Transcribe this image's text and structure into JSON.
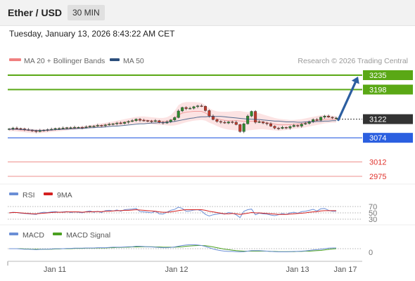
{
  "header": {
    "title": "Ether / USD",
    "timeframe": "30 MIN",
    "timestamp": "Tuesday, January 13, 2026 8:43:22 AM CET"
  },
  "legend": {
    "bollinger": "MA 20 + Bollinger Bands",
    "ma50": "MA 50",
    "credit": "Research © 2026 Trading Central"
  },
  "colors": {
    "resistance": "#5aa815",
    "support": "#2b5fe0",
    "pivot": "#333333",
    "minor": "#e0332d",
    "arrow": "#2c5ea0",
    "bollinger": "#f08080",
    "ma50": "#2c4f7c",
    "rsi": "#6b8fd6",
    "rsi_ma": "#d42020",
    "macd": "#6b8fd6",
    "macd_signal": "#4aa020"
  },
  "chart_data": [
    {
      "type": "candlestick",
      "title": "Ether / USD",
      "x_ticks": [
        "Jan 11",
        "Jan 12",
        "Jan 13",
        "Jan 17"
      ],
      "ylim": [
        2950,
        3250
      ],
      "price_levels": [
        {
          "value": 3235,
          "label": "3235",
          "kind": "resistance"
        },
        {
          "value": 3198,
          "label": "3198",
          "kind": "resistance"
        },
        {
          "value": 3122,
          "label": "3122",
          "kind": "pivot"
        },
        {
          "value": 3074,
          "label": "3074",
          "kind": "support"
        },
        {
          "value": 3012,
          "label": "3012",
          "kind": "minor"
        },
        {
          "value": 2975,
          "label": "2975",
          "kind": "minor"
        }
      ],
      "forecast_arrow": {
        "from": 3120,
        "to": 3235
      },
      "close": [
        3097,
        3099,
        3098,
        3097,
        3095,
        3094,
        3092,
        3090,
        3093,
        3094,
        3095,
        3096,
        3098,
        3098,
        3099,
        3100,
        3100,
        3101,
        3101,
        3100,
        3102,
        3104,
        3104,
        3106,
        3105,
        3107,
        3109,
        3110,
        3112,
        3111,
        3114,
        3116,
        3118,
        3122,
        3119,
        3118,
        3117,
        3116,
        3118,
        3114,
        3112,
        3115,
        3120,
        3126,
        3143,
        3152,
        3149,
        3150,
        3154,
        3156,
        3155,
        3144,
        3130,
        3121,
        3116,
        3114,
        3112,
        3115,
        3114,
        3108,
        3090,
        3110,
        3130,
        3142,
        3114,
        3115,
        3112,
        3110,
        3104,
        3099,
        3098,
        3101,
        3099,
        3103,
        3106,
        3104,
        3109,
        3111,
        3116,
        3121,
        3119,
        3127,
        3130,
        3127,
        3125,
        3125
      ],
      "series": [
        {
          "name": "MA 20 + Bollinger Bands",
          "kind": "bollinger",
          "upper": [
            3100,
            3100,
            3100,
            3099,
            3099,
            3098,
            3097,
            3096,
            3096,
            3096,
            3097,
            3098,
            3099,
            3100,
            3101,
            3102,
            3102,
            3103,
            3103,
            3104,
            3105,
            3107,
            3108,
            3110,
            3111,
            3113,
            3114,
            3116,
            3118,
            3120,
            3122,
            3124,
            3126,
            3128,
            3129,
            3129,
            3128,
            3127,
            3126,
            3125,
            3125,
            3127,
            3132,
            3143,
            3158,
            3164,
            3166,
            3166,
            3166,
            3165,
            3164,
            3158,
            3150,
            3145,
            3142,
            3141,
            3141,
            3141,
            3142,
            3143,
            3143,
            3141,
            3140,
            3139,
            3138,
            3137,
            3134,
            3131,
            3128,
            3125,
            3123,
            3122,
            3121,
            3120,
            3120,
            3121,
            3122,
            3124,
            3126,
            3128,
            3130,
            3132,
            3132,
            3132,
            3131,
            3130
          ],
          "lower": [
            3091,
            3091,
            3090,
            3089,
            3088,
            3087,
            3086,
            3086,
            3086,
            3087,
            3088,
            3089,
            3090,
            3091,
            3092,
            3093,
            3094,
            3095,
            3096,
            3096,
            3097,
            3098,
            3099,
            3100,
            3101,
            3102,
            3103,
            3104,
            3105,
            3106,
            3107,
            3108,
            3109,
            3110,
            3111,
            3111,
            3110,
            3109,
            3108,
            3107,
            3107,
            3106,
            3105,
            3106,
            3108,
            3111,
            3114,
            3116,
            3118,
            3119,
            3120,
            3118,
            3113,
            3109,
            3104,
            3100,
            3097,
            3095,
            3094,
            3093,
            3092,
            3092,
            3093,
            3094,
            3095,
            3096,
            3096,
            3095,
            3094,
            3093,
            3092,
            3093,
            3094,
            3096,
            3097,
            3098,
            3099,
            3101,
            3103,
            3105,
            3107,
            3109,
            3111,
            3112,
            3113,
            3113
          ]
        },
        {
          "name": "MA 50",
          "kind": "ma",
          "values": [
            3096,
            3096,
            3096,
            3095,
            3095,
            3094,
            3094,
            3093,
            3093,
            3093,
            3094,
            3094,
            3095,
            3095,
            3096,
            3096,
            3097,
            3097,
            3098,
            3098,
            3099,
            3100,
            3100,
            3101,
            3101,
            3102,
            3103,
            3104,
            3104,
            3105,
            3106,
            3107,
            3108,
            3109,
            3110,
            3110,
            3111,
            3112,
            3112,
            3113,
            3113,
            3114,
            3115,
            3116,
            3118,
            3120,
            3122,
            3124,
            3125,
            3127,
            3128,
            3128,
            3129,
            3129,
            3129,
            3129,
            3128,
            3127,
            3126,
            3125,
            3124,
            3123,
            3122,
            3122,
            3121,
            3121,
            3120,
            3119,
            3118,
            3117,
            3117,
            3116,
            3115,
            3115,
            3115,
            3114,
            3114,
            3115,
            3115,
            3115,
            3116,
            3116,
            3117,
            3117,
            3118,
            3118
          ]
        }
      ]
    },
    {
      "type": "line",
      "title": "RSI",
      "y_ticks": [
        "70",
        "50",
        "30"
      ],
      "ylim": [
        25,
        75
      ],
      "series": [
        {
          "name": "RSI",
          "values": [
            50,
            52,
            51,
            49,
            48,
            47,
            46,
            45,
            50,
            52,
            51,
            53,
            54,
            52,
            53,
            54,
            51,
            53,
            52,
            50,
            54,
            56,
            52,
            55,
            51,
            57,
            58,
            56,
            59,
            55,
            60,
            61,
            62,
            64,
            54,
            53,
            52,
            50,
            55,
            47,
            46,
            52,
            58,
            61,
            68,
            64,
            55,
            56,
            59,
            60,
            56,
            45,
            40,
            44,
            46,
            48,
            46,
            51,
            49,
            44,
            35,
            55,
            60,
            62,
            44,
            49,
            47,
            46,
            43,
            41,
            44,
            48,
            45,
            50,
            52,
            49,
            54,
            55,
            58,
            61,
            56,
            63,
            64,
            58,
            55,
            55
          ]
        },
        {
          "name": "9MA",
          "values": [
            50,
            51,
            51,
            50,
            49,
            48,
            47,
            47,
            48,
            49,
            50,
            51,
            52,
            52,
            52,
            53,
            53,
            53,
            53,
            52,
            53,
            53,
            54,
            54,
            54,
            55,
            55,
            56,
            57,
            57,
            58,
            58,
            59,
            60,
            59,
            58,
            57,
            56,
            55,
            53,
            52,
            52,
            53,
            55,
            57,
            59,
            60,
            60,
            60,
            60,
            60,
            58,
            55,
            53,
            51,
            49,
            47,
            47,
            48,
            47,
            45,
            47,
            49,
            51,
            50,
            50,
            49,
            48,
            47,
            46,
            45,
            45,
            45,
            46,
            47,
            48,
            49,
            50,
            52,
            53,
            54,
            56,
            57,
            57,
            57,
            57
          ]
        }
      ]
    },
    {
      "type": "line",
      "title": "MACD",
      "y_ticks": [
        "0"
      ],
      "ylim": [
        -10,
        15
      ],
      "series": [
        {
          "name": "MACD",
          "values": [
            0,
            0,
            0,
            -0.5,
            -1,
            -1,
            -1.5,
            -2,
            -1.5,
            -1,
            -1,
            -0.5,
            0,
            0,
            0,
            0.5,
            0.5,
            1,
            1,
            1,
            1.5,
            1.5,
            1.5,
            2,
            2,
            2,
            2.5,
            3,
            3,
            3,
            3.5,
            4,
            4,
            5,
            5,
            4.5,
            4,
            3.5,
            3,
            2.5,
            2,
            2,
            2.5,
            3.5,
            5,
            6.5,
            7.5,
            8,
            8,
            7.5,
            6.5,
            4.5,
            2,
            -0.5,
            -2.5,
            -4,
            -5,
            -5.5,
            -5.5,
            -6,
            -6.5,
            -6,
            -5,
            -4,
            -4,
            -4,
            -4.5,
            -5,
            -5.5,
            -6,
            -6.5,
            -6.5,
            -6.5,
            -6,
            -5.5,
            -5.5,
            -5,
            -4.5,
            -3.5,
            -2.5,
            -2,
            -1,
            0,
            1,
            1.5,
            1.5
          ]
        },
        {
          "name": "MACD Signal",
          "values": [
            0,
            0,
            0,
            0,
            -0.5,
            -0.5,
            -1,
            -1,
            -1,
            -1,
            -1,
            -1,
            -0.5,
            -0.5,
            0,
            0,
            0,
            0.5,
            0.5,
            0.5,
            1,
            1,
            1,
            1.5,
            1.5,
            1.5,
            2,
            2,
            2.5,
            2.5,
            3,
            3,
            3.5,
            3.5,
            4,
            4,
            4,
            4,
            3.5,
            3.5,
            3,
            3,
            3,
            3,
            3.5,
            4,
            5,
            5.5,
            6,
            6.5,
            6.5,
            6,
            5,
            3.5,
            2,
            0.5,
            -1,
            -2,
            -3,
            -4,
            -4.5,
            -5,
            -5,
            -5,
            -5,
            -5,
            -5,
            -5,
            -5.5,
            -5.5,
            -6,
            -6,
            -6,
            -6,
            -6,
            -5.5,
            -5.5,
            -5,
            -5,
            -4.5,
            -4,
            -3.5,
            -2.5,
            -1.5,
            -0.5,
            0
          ]
        }
      ]
    }
  ]
}
